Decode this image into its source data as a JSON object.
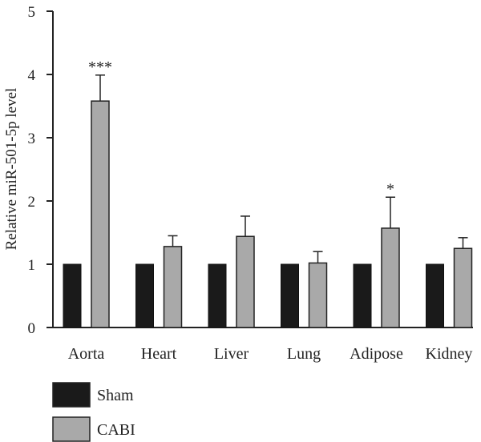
{
  "chart_data": {
    "type": "bar",
    "title": "",
    "xlabel": "",
    "ylabel": "Relative miR-501-5p level",
    "ylim": [
      0,
      5
    ],
    "yticks": [
      "0",
      "1",
      "2",
      "3",
      "4",
      "5"
    ],
    "categories": [
      "Aorta",
      "Heart",
      "Liver",
      "Lung",
      "Adipose",
      "Kidney"
    ],
    "series": [
      {
        "name": "Sham",
        "color": "#1a1a1a",
        "values": [
          1.0,
          1.0,
          1.0,
          1.0,
          1.0,
          1.0
        ],
        "errors": [
          0,
          0,
          0,
          0,
          0,
          0
        ]
      },
      {
        "name": "CABI",
        "color": "#a9a9a9",
        "values": [
          3.58,
          1.28,
          1.44,
          1.02,
          1.57,
          1.25
        ],
        "errors": [
          0.41,
          0.17,
          0.32,
          0.18,
          0.49,
          0.17
        ]
      }
    ],
    "significance": [
      "***",
      "",
      "",
      "",
      "*",
      ""
    ],
    "grid": false,
    "legend_position": "bottom-left"
  }
}
